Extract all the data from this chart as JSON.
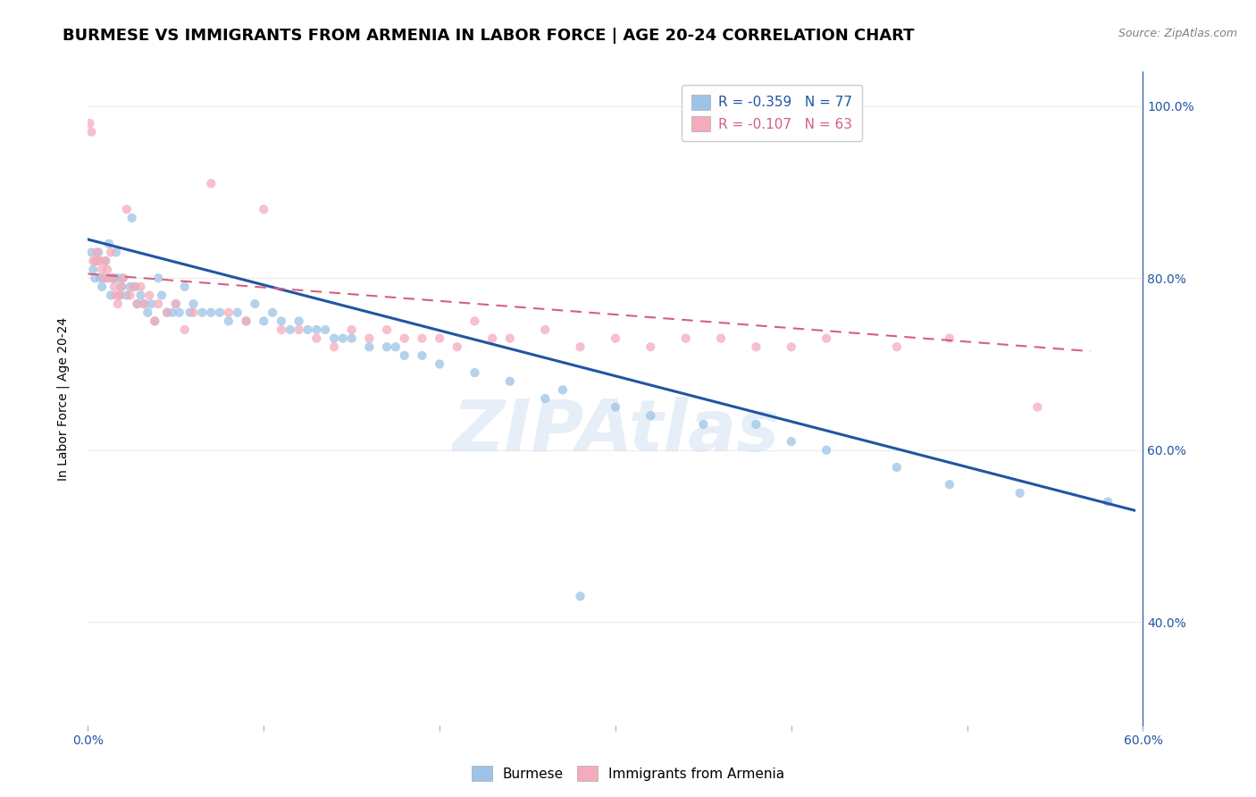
{
  "title": "BURMESE VS IMMIGRANTS FROM ARMENIA IN LABOR FORCE | AGE 20-24 CORRELATION CHART",
  "source": "Source: ZipAtlas.com",
  "ylabel": "In Labor Force | Age 20-24",
  "xlim": [
    0.0,
    0.6
  ],
  "ylim": [
    0.28,
    1.04
  ],
  "xtick_vals": [
    0.0,
    0.1,
    0.2,
    0.3,
    0.4,
    0.5,
    0.6
  ],
  "xtick_labels_sparse": [
    "0.0%",
    "",
    "",
    "",
    "",
    "",
    "60.0%"
  ],
  "ytick_vals": [
    0.4,
    0.6,
    0.8,
    1.0
  ],
  "ytick_labels": [
    "40.0%",
    "60.0%",
    "80.0%",
    "100.0%"
  ],
  "blue_color": "#9DC3E6",
  "pink_color": "#F4ABBB",
  "blue_line_color": "#2155A3",
  "pink_line_color": "#D46080",
  "legend_blue_text": "R = -0.359   N = 77",
  "legend_pink_text": "R = -0.107   N = 63",
  "legend_text_color_blue": "#2155A3",
  "legend_text_color_pink": "#D46080",
  "watermark": "ZIPAtlas",
  "blue_scatter_x": [
    0.002,
    0.003,
    0.004,
    0.005,
    0.006,
    0.007,
    0.008,
    0.009,
    0.01,
    0.011,
    0.012,
    0.013,
    0.014,
    0.015,
    0.016,
    0.017,
    0.018,
    0.019,
    0.02,
    0.022,
    0.024,
    0.025,
    0.027,
    0.028,
    0.03,
    0.032,
    0.034,
    0.036,
    0.038,
    0.04,
    0.042,
    0.045,
    0.048,
    0.05,
    0.052,
    0.055,
    0.058,
    0.06,
    0.065,
    0.07,
    0.075,
    0.08,
    0.085,
    0.09,
    0.095,
    0.1,
    0.105,
    0.11,
    0.115,
    0.12,
    0.125,
    0.13,
    0.135,
    0.14,
    0.145,
    0.15,
    0.16,
    0.17,
    0.175,
    0.18,
    0.19,
    0.2,
    0.22,
    0.24,
    0.26,
    0.27,
    0.3,
    0.32,
    0.35,
    0.38,
    0.4,
    0.42,
    0.46,
    0.49,
    0.53,
    0.58,
    0.28
  ],
  "blue_scatter_y": [
    0.83,
    0.81,
    0.8,
    0.82,
    0.83,
    0.8,
    0.79,
    0.8,
    0.82,
    0.8,
    0.84,
    0.78,
    0.8,
    0.8,
    0.83,
    0.8,
    0.78,
    0.79,
    0.8,
    0.78,
    0.79,
    0.87,
    0.79,
    0.77,
    0.78,
    0.77,
    0.76,
    0.77,
    0.75,
    0.8,
    0.78,
    0.76,
    0.76,
    0.77,
    0.76,
    0.79,
    0.76,
    0.77,
    0.76,
    0.76,
    0.76,
    0.75,
    0.76,
    0.75,
    0.77,
    0.75,
    0.76,
    0.75,
    0.74,
    0.75,
    0.74,
    0.74,
    0.74,
    0.73,
    0.73,
    0.73,
    0.72,
    0.72,
    0.72,
    0.71,
    0.71,
    0.7,
    0.69,
    0.68,
    0.66,
    0.67,
    0.65,
    0.64,
    0.63,
    0.63,
    0.61,
    0.6,
    0.58,
    0.56,
    0.55,
    0.54,
    0.43
  ],
  "pink_scatter_x": [
    0.001,
    0.002,
    0.003,
    0.004,
    0.005,
    0.006,
    0.007,
    0.008,
    0.009,
    0.01,
    0.011,
    0.012,
    0.013,
    0.014,
    0.015,
    0.016,
    0.017,
    0.018,
    0.019,
    0.02,
    0.022,
    0.024,
    0.026,
    0.028,
    0.03,
    0.032,
    0.035,
    0.038,
    0.04,
    0.045,
    0.05,
    0.055,
    0.06,
    0.07,
    0.08,
    0.09,
    0.1,
    0.11,
    0.12,
    0.13,
    0.14,
    0.15,
    0.16,
    0.17,
    0.18,
    0.19,
    0.2,
    0.21,
    0.22,
    0.23,
    0.24,
    0.26,
    0.28,
    0.3,
    0.32,
    0.34,
    0.36,
    0.38,
    0.4,
    0.42,
    0.46,
    0.49,
    0.54
  ],
  "pink_scatter_y": [
    0.98,
    0.97,
    0.82,
    0.82,
    0.83,
    0.82,
    0.82,
    0.81,
    0.8,
    0.82,
    0.81,
    0.8,
    0.83,
    0.8,
    0.79,
    0.78,
    0.77,
    0.78,
    0.79,
    0.8,
    0.88,
    0.78,
    0.79,
    0.77,
    0.79,
    0.77,
    0.78,
    0.75,
    0.77,
    0.76,
    0.77,
    0.74,
    0.76,
    0.91,
    0.76,
    0.75,
    0.88,
    0.74,
    0.74,
    0.73,
    0.72,
    0.74,
    0.73,
    0.74,
    0.73,
    0.73,
    0.73,
    0.72,
    0.75,
    0.73,
    0.73,
    0.74,
    0.72,
    0.73,
    0.72,
    0.73,
    0.73,
    0.72,
    0.72,
    0.73,
    0.72,
    0.73,
    0.65
  ],
  "blue_trend_x": [
    0.0,
    0.595
  ],
  "blue_trend_y": [
    0.845,
    0.53
  ],
  "pink_trend_x": [
    0.0,
    0.57
  ],
  "pink_trend_y": [
    0.805,
    0.715
  ],
  "right_ytick_color": "#2155A3",
  "title_fontsize": 13,
  "label_fontsize": 10,
  "tick_fontsize": 10,
  "scatter_size": 55,
  "scatter_alpha": 0.75,
  "grid_color": "#CCCCCC",
  "grid_style": ":"
}
